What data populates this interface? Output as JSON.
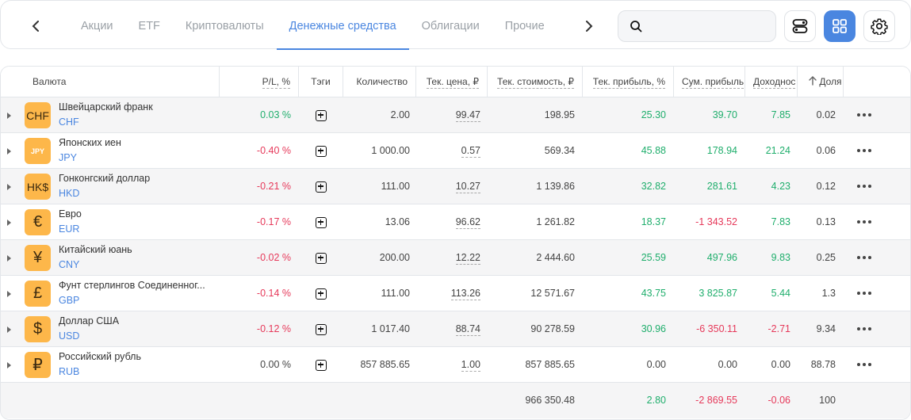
{
  "nav": {
    "tabs": [
      "Акции",
      "ETF",
      "Криптовалюты",
      "Денежные средства",
      "Облигации",
      "Прочие"
    ],
    "active_tab": 3,
    "search_placeholder": ""
  },
  "table": {
    "headers": {
      "currency": "Валюта",
      "pl": "P/L, %",
      "tags": "Тэги",
      "quantity": "Количество",
      "price": "Тек. цена, ₽",
      "value": "Тек. стоимость, ₽",
      "profit_pct": "Тек. прибыль, %",
      "total_profit": "Сум. прибыль",
      "yield": "Доходнос",
      "share": "Доля"
    },
    "rows": [
      {
        "icon": "CHF",
        "name": "Швейцарский франк",
        "code": "CHF",
        "pl": "0.03 %",
        "pl_sign": "pos",
        "qty": "2.00",
        "price": "99.47",
        "value": "198.95",
        "profit_pct": "25.30",
        "profit_pct_sign": "pos",
        "total_profit": "39.70",
        "total_profit_sign": "pos",
        "yield": "7.85",
        "yield_sign": "pos",
        "share": "0.02"
      },
      {
        "icon": "JPY",
        "name": "Японских иен",
        "code": "JPY",
        "pl": "-0.40 %",
        "pl_sign": "neg",
        "qty": "1 000.00",
        "price": "0.57",
        "value": "569.34",
        "profit_pct": "45.88",
        "profit_pct_sign": "pos",
        "total_profit": "178.94",
        "total_profit_sign": "pos",
        "yield": "21.24",
        "yield_sign": "pos",
        "share": "0.06"
      },
      {
        "icon": "HK$",
        "name": "Гонконгский доллар",
        "code": "HKD",
        "pl": "-0.21 %",
        "pl_sign": "neg",
        "qty": "111.00",
        "price": "10.27",
        "value": "1 139.86",
        "profit_pct": "32.82",
        "profit_pct_sign": "pos",
        "total_profit": "281.61",
        "total_profit_sign": "pos",
        "yield": "4.23",
        "yield_sign": "pos",
        "share": "0.12"
      },
      {
        "icon": "€",
        "name": "Евро",
        "code": "EUR",
        "pl": "-0.17 %",
        "pl_sign": "neg",
        "qty": "13.06",
        "price": "96.62",
        "value": "1 261.82",
        "profit_pct": "18.37",
        "profit_pct_sign": "pos",
        "total_profit": "-1 343.52",
        "total_profit_sign": "neg",
        "yield": "7.83",
        "yield_sign": "pos",
        "share": "0.13"
      },
      {
        "icon": "¥",
        "name": "Китайский юань",
        "code": "CNY",
        "pl": "-0.02 %",
        "pl_sign": "neg",
        "qty": "200.00",
        "price": "12.22",
        "value": "2 444.60",
        "profit_pct": "25.59",
        "profit_pct_sign": "pos",
        "total_profit": "497.96",
        "total_profit_sign": "pos",
        "yield": "9.83",
        "yield_sign": "pos",
        "share": "0.25"
      },
      {
        "icon": "£",
        "name": "Фунт стерлингов Соединенног...",
        "code": "GBP",
        "pl": "-0.14 %",
        "pl_sign": "neg",
        "qty": "111.00",
        "price": "113.26",
        "value": "12 571.67",
        "profit_pct": "43.75",
        "profit_pct_sign": "pos",
        "total_profit": "3 825.87",
        "total_profit_sign": "pos",
        "yield": "5.44",
        "yield_sign": "pos",
        "share": "1.3"
      },
      {
        "icon": "$",
        "name": "Доллар США",
        "code": "USD",
        "pl": "-0.12 %",
        "pl_sign": "neg",
        "qty": "1 017.40",
        "price": "88.74",
        "value": "90 278.59",
        "profit_pct": "30.96",
        "profit_pct_sign": "pos",
        "total_profit": "-6 350.11",
        "total_profit_sign": "neg",
        "yield": "-2.71",
        "yield_sign": "neg",
        "share": "9.34"
      },
      {
        "icon": "₽",
        "name": "Российский рубль",
        "code": "RUB",
        "pl": "0.00 %",
        "pl_sign": "neu",
        "qty": "857 885.65",
        "price": "1.00",
        "value": "857 885.65",
        "profit_pct": "0.00",
        "profit_pct_sign": "neu",
        "total_profit": "0.00",
        "total_profit_sign": "neu",
        "yield": "0.00",
        "yield_sign": "neu",
        "share": "88.78"
      }
    ],
    "totals": {
      "value": "966 350.48",
      "profit_pct": "2.80",
      "total_profit": "-2 869.55",
      "yield": "-0.06",
      "share": "100"
    }
  },
  "colors": {
    "accent": "#4a86e0",
    "positive": "#1fae6c",
    "negative": "#e6395a",
    "icon_bg": "#fdb74a"
  }
}
